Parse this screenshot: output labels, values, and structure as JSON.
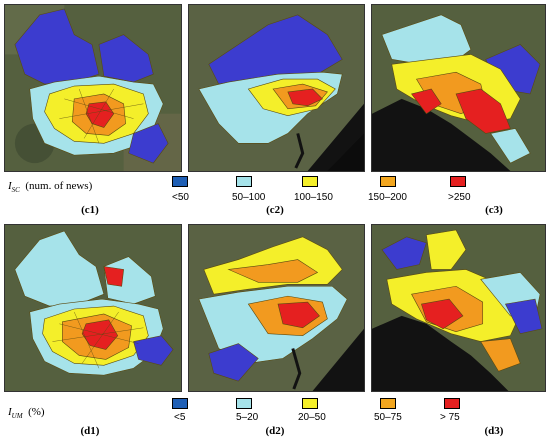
{
  "colors": {
    "very_low": "#3c3ccf",
    "low": "#a6e3ea",
    "mid": "#f4ef2a",
    "high": "#f29a1f",
    "very_high": "#e52020",
    "satellite_dark": "#4f5a3e",
    "sea": "#121212",
    "border": "#5a4a10"
  },
  "row1": {
    "legend_title_var": "I",
    "legend_title_sub": "SC",
    "legend_title_rest": "(num. of news)",
    "legend_items": [
      {
        "label": "<50",
        "color": "#3c3ccf"
      },
      {
        "label": "50–100",
        "color": "#a6e3ea"
      },
      {
        "label": "100–150",
        "color": "#f4ef2a"
      },
      {
        "label": "150–200",
        "color": "#f2a61f"
      },
      {
        "label": ">250",
        "color": "#e52020"
      }
    ],
    "panels": [
      "(c1)",
      "(c2)",
      "(c3)"
    ]
  },
  "row2": {
    "legend_title_var": "I",
    "legend_title_sub": "UM",
    "legend_title_rest": "(%)",
    "legend_items": [
      {
        "label": "<5",
        "color": "#1f5fb5"
      },
      {
        "label": "5–20",
        "color": "#a6e3ea"
      },
      {
        "label": "20–50",
        "color": "#f4ef2a"
      },
      {
        "label": "50–75",
        "color": "#f2a61f"
      },
      {
        "label": "> 75",
        "color": "#e52020"
      }
    ],
    "panels": [
      "(d1)",
      "(d2)",
      "(d3)"
    ]
  }
}
